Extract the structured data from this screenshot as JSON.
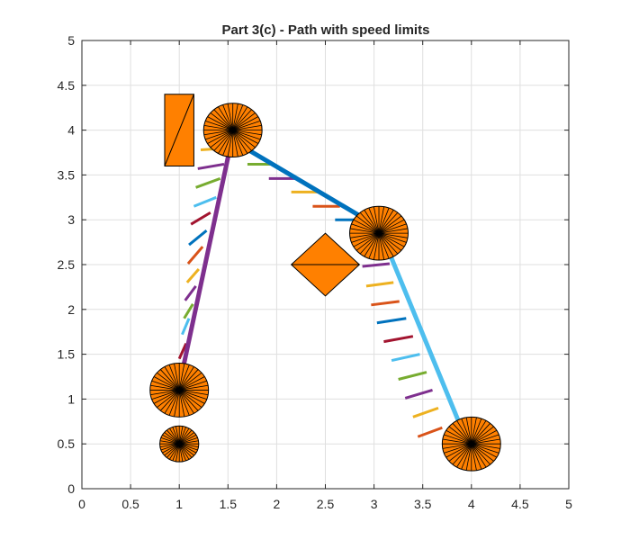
{
  "chart_data": {
    "type": "scatter",
    "title": "Part 3(c) - Path with speed limits",
    "xlabel": "",
    "ylabel": "",
    "xlim": [
      0,
      5
    ],
    "ylim": [
      0,
      5
    ],
    "grid": true,
    "xticks": [
      "0",
      "0.5",
      "1",
      "1.5",
      "2",
      "2.5",
      "3",
      "3.5",
      "4",
      "4.5",
      "5"
    ],
    "yticks": [
      "0",
      "0.5",
      "1",
      "1.5",
      "2",
      "2.5",
      "3",
      "3.5",
      "4",
      "4.5",
      "5"
    ],
    "path_segments": [
      {
        "from": [
          1.03,
          1.3
        ],
        "to": [
          1.55,
          3.95
        ],
        "color": "#7e2f8e"
      },
      {
        "from": [
          1.6,
          3.85
        ],
        "to": [
          3.0,
          2.95
        ],
        "color": "#0072bd"
      },
      {
        "from": [
          3.15,
          2.65
        ],
        "to": [
          3.88,
          0.72
        ],
        "color": "#4dbeee"
      }
    ],
    "speed_limit_markers": [
      {
        "x1": 1.0,
        "y1": 1.45,
        "x2": 1.07,
        "y2": 1.62,
        "color": "#a2142f"
      },
      {
        "x1": 1.03,
        "y1": 1.72,
        "x2": 1.1,
        "y2": 1.9,
        "color": "#4dbeee"
      },
      {
        "x1": 1.05,
        "y1": 1.9,
        "x2": 1.14,
        "y2": 2.06,
        "color": "#77ac30"
      },
      {
        "x1": 1.06,
        "y1": 2.1,
        "x2": 1.17,
        "y2": 2.26,
        "color": "#7e2f8e"
      },
      {
        "x1": 1.08,
        "y1": 2.3,
        "x2": 1.2,
        "y2": 2.45,
        "color": "#edb120"
      },
      {
        "x1": 1.09,
        "y1": 2.51,
        "x2": 1.24,
        "y2": 2.7,
        "color": "#d95319"
      },
      {
        "x1": 1.1,
        "y1": 2.72,
        "x2": 1.28,
        "y2": 2.88,
        "color": "#0072bd"
      },
      {
        "x1": 1.12,
        "y1": 2.95,
        "x2": 1.32,
        "y2": 3.08,
        "color": "#a2142f"
      },
      {
        "x1": 1.15,
        "y1": 3.15,
        "x2": 1.38,
        "y2": 3.25,
        "color": "#4dbeee"
      },
      {
        "x1": 1.17,
        "y1": 3.36,
        "x2": 1.42,
        "y2": 3.46,
        "color": "#77ac30"
      },
      {
        "x1": 1.19,
        "y1": 3.57,
        "x2": 1.46,
        "y2": 3.62,
        "color": "#7e2f8e"
      },
      {
        "x1": 1.22,
        "y1": 3.78,
        "x2": 1.5,
        "y2": 3.8,
        "color": "#edb120"
      },
      {
        "x1": 1.7,
        "y1": 3.62,
        "x2": 1.98,
        "y2": 3.62,
        "color": "#77ac30"
      },
      {
        "x1": 1.92,
        "y1": 3.46,
        "x2": 2.2,
        "y2": 3.46,
        "color": "#7e2f8e"
      },
      {
        "x1": 2.15,
        "y1": 3.31,
        "x2": 2.43,
        "y2": 3.31,
        "color": "#edb120"
      },
      {
        "x1": 2.37,
        "y1": 3.15,
        "x2": 2.65,
        "y2": 3.15,
        "color": "#d95319"
      },
      {
        "x1": 2.6,
        "y1": 3.0,
        "x2": 2.88,
        "y2": 3.0,
        "color": "#0072bd"
      },
      {
        "x1": 2.88,
        "y1": 2.48,
        "x2": 3.16,
        "y2": 2.51,
        "color": "#7e2f8e"
      },
      {
        "x1": 2.92,
        "y1": 2.26,
        "x2": 3.2,
        "y2": 2.3,
        "color": "#edb120"
      },
      {
        "x1": 2.97,
        "y1": 2.05,
        "x2": 3.26,
        "y2": 2.09,
        "color": "#d95319"
      },
      {
        "x1": 3.03,
        "y1": 1.85,
        "x2": 3.33,
        "y2": 1.9,
        "color": "#0072bd"
      },
      {
        "x1": 3.1,
        "y1": 1.64,
        "x2": 3.4,
        "y2": 1.7,
        "color": "#a2142f"
      },
      {
        "x1": 3.18,
        "y1": 1.43,
        "x2": 3.47,
        "y2": 1.5,
        "color": "#4dbeee"
      },
      {
        "x1": 3.25,
        "y1": 1.22,
        "x2": 3.54,
        "y2": 1.3,
        "color": "#77ac30"
      },
      {
        "x1": 3.32,
        "y1": 1.01,
        "x2": 3.6,
        "y2": 1.1,
        "color": "#7e2f8e"
      },
      {
        "x1": 3.4,
        "y1": 0.8,
        "x2": 3.66,
        "y2": 0.9,
        "color": "#edb120"
      },
      {
        "x1": 3.45,
        "y1": 0.58,
        "x2": 3.7,
        "y2": 0.68,
        "color": "#d95319"
      }
    ],
    "circular_obstacles": [
      {
        "cx": 1.0,
        "cy": 0.5,
        "r": 0.2,
        "color": "#ff8000"
      },
      {
        "cx": 1.0,
        "cy": 1.1,
        "r": 0.3,
        "color": "#ff8000"
      },
      {
        "cx": 1.55,
        "cy": 4.0,
        "r": 0.3,
        "color": "#ff8000"
      },
      {
        "cx": 3.05,
        "cy": 2.85,
        "r": 0.3,
        "color": "#ff8000"
      },
      {
        "cx": 4.0,
        "cy": 0.5,
        "r": 0.3,
        "color": "#ff8000"
      }
    ],
    "polygon_obstacles": [
      {
        "shape": "rectangle",
        "points": [
          [
            0.85,
            3.6
          ],
          [
            1.15,
            3.6
          ],
          [
            1.15,
            4.4
          ],
          [
            0.85,
            4.4
          ]
        ],
        "diagonal": [
          [
            0.85,
            3.6
          ],
          [
            1.15,
            4.4
          ]
        ],
        "color": "#ff8000"
      },
      {
        "shape": "diamond",
        "points": [
          [
            2.5,
            2.15
          ],
          [
            2.85,
            2.5
          ],
          [
            2.5,
            2.85
          ],
          [
            2.15,
            2.5
          ]
        ],
        "diagonal": [
          [
            2.15,
            2.5
          ],
          [
            2.85,
            2.5
          ]
        ],
        "color": "#ff8000"
      }
    ]
  }
}
